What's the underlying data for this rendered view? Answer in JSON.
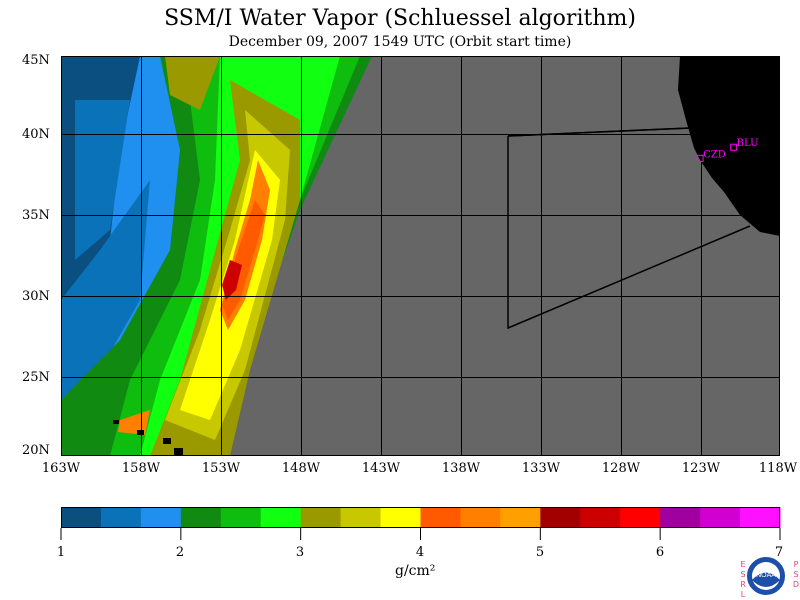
{
  "title": "SSM/I Water Vapor (Schluessel algorithm)",
  "subtitle": "December 09, 2007  1549 UTC  (Orbit start time)",
  "lat_labels": [
    "45N",
    "40N",
    "35N",
    "30N",
    "25N",
    "20N"
  ],
  "lon_labels": [
    "163W",
    "158W",
    "153W",
    "148W",
    "143W",
    "138W",
    "133W",
    "128W",
    "123W",
    "118W"
  ],
  "stations": [
    {
      "name": "CZD",
      "lon": -123.0,
      "lat": 38.6
    },
    {
      "name": "BLU",
      "lon": -120.9,
      "lat": 39.3
    }
  ],
  "colorbar": {
    "unit": "g/cm²",
    "tick_labels": [
      "1",
      "2",
      "3",
      "4",
      "5",
      "6",
      "7"
    ],
    "colors": [
      "#0b4f80",
      "#0a72b8",
      "#1f8ff0",
      "#118a11",
      "#0fbd0f",
      "#11ff11",
      "#9a9a00",
      "#c8c800",
      "#ffff00",
      "#ff5a00",
      "#ff8000",
      "#ffa000",
      "#a00000",
      "#cc0000",
      "#ff0000",
      "#a000a0",
      "#d000d0",
      "#ff10ff"
    ],
    "range": [
      1,
      7
    ]
  },
  "colors": {
    "land": "#000000",
    "nodata": "#666666",
    "boundary": "#000000",
    "station": "#ff00ff"
  },
  "logo_text": "NOAA",
  "side_text_left": "ESRL",
  "side_text_right": "PSD"
}
